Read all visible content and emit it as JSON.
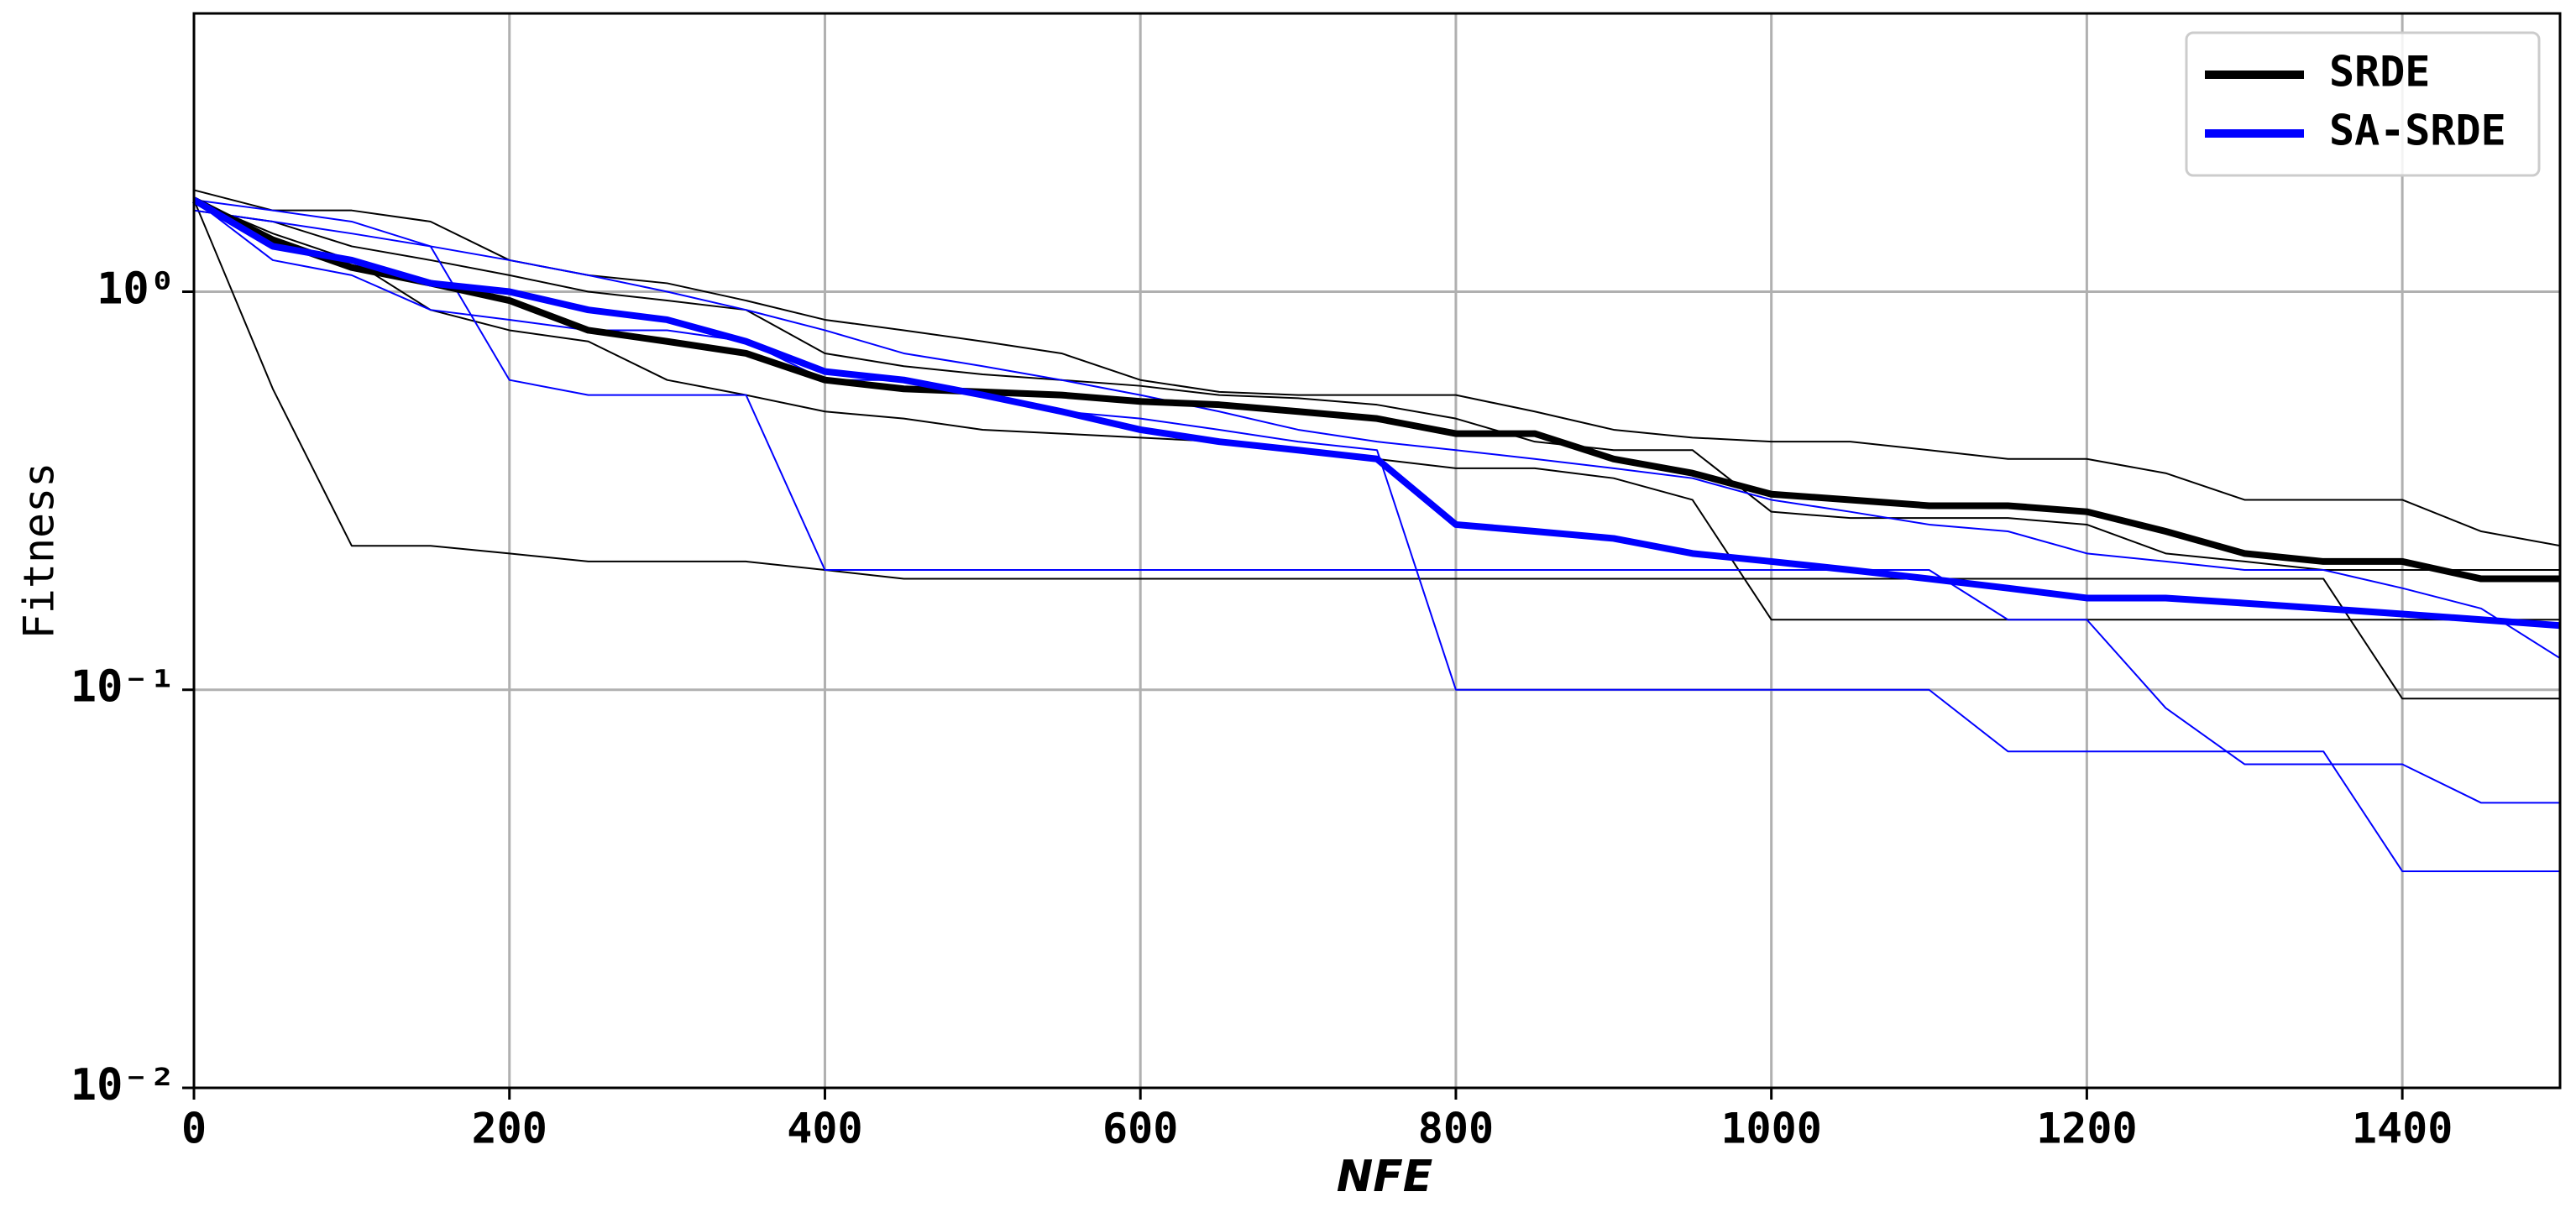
{
  "chart_data": {
    "type": "line",
    "log_y": true,
    "grid": true,
    "legend": "upper right",
    "xlabel": "NFE",
    "ylabel": "Fitness",
    "xlim": [
      0,
      1500
    ],
    "xticks": [
      0,
      200,
      400,
      600,
      800,
      1000,
      1200,
      1400
    ],
    "ylim": [
      0.01,
      5
    ],
    "yticks": [
      {
        "value": 0.01,
        "label": "10⁻²"
      },
      {
        "value": 0.1,
        "label": "10⁻¹"
      },
      {
        "value": 1,
        "label": "10⁰"
      }
    ],
    "x": [
      0,
      50,
      100,
      150,
      200,
      250,
      300,
      350,
      400,
      450,
      500,
      550,
      600,
      650,
      700,
      750,
      800,
      850,
      900,
      950,
      1000,
      1050,
      1100,
      1150,
      1200,
      1250,
      1300,
      1350,
      1400,
      1450,
      1500
    ],
    "series": [
      {
        "color": "#000000",
        "linewidth": 2,
        "values": [
          1.7,
          0.57,
          0.23,
          0.23,
          0.22,
          0.21,
          0.21,
          0.21,
          0.2,
          0.19,
          0.19,
          0.19,
          0.19,
          0.19,
          0.19,
          0.19,
          0.19,
          0.19,
          0.19,
          0.19,
          0.19,
          0.19,
          0.19,
          0.19,
          0.19,
          0.19,
          0.19,
          0.19,
          0.095,
          0.095,
          0.095
        ]
      },
      {
        "color": "#000000",
        "linewidth": 2,
        "values": [
          1.8,
          1.6,
          1.6,
          1.5,
          1.2,
          1.1,
          1.05,
          0.95,
          0.85,
          0.8,
          0.75,
          0.7,
          0.6,
          0.56,
          0.55,
          0.55,
          0.55,
          0.5,
          0.45,
          0.43,
          0.42,
          0.42,
          0.4,
          0.38,
          0.38,
          0.35,
          0.3,
          0.3,
          0.3,
          0.25,
          0.23
        ]
      },
      {
        "color": "#000000",
        "linewidth": 2,
        "values": [
          1.7,
          1.4,
          1.2,
          0.9,
          0.8,
          0.75,
          0.6,
          0.55,
          0.5,
          0.48,
          0.45,
          0.44,
          0.43,
          0.42,
          0.4,
          0.38,
          0.36,
          0.36,
          0.34,
          0.3,
          0.15,
          0.15,
          0.15,
          0.15,
          0.15,
          0.15,
          0.15,
          0.15,
          0.15,
          0.15,
          0.15
        ]
      },
      {
        "color": "#000000",
        "linewidth": 2,
        "values": [
          1.6,
          1.5,
          1.3,
          1.2,
          1.1,
          1.0,
          0.95,
          0.9,
          0.7,
          0.65,
          0.62,
          0.6,
          0.58,
          0.55,
          0.54,
          0.52,
          0.48,
          0.42,
          0.4,
          0.4,
          0.28,
          0.27,
          0.27,
          0.27,
          0.26,
          0.22,
          0.21,
          0.2,
          0.2,
          0.2,
          0.2
        ]
      },
      {
        "color": "#0000ff",
        "linewidth": 2,
        "values": [
          1.7,
          1.2,
          1.1,
          0.9,
          0.85,
          0.8,
          0.8,
          0.75,
          0.6,
          0.6,
          0.55,
          0.5,
          0.48,
          0.45,
          0.42,
          0.4,
          0.1,
          0.1,
          0.1,
          0.1,
          0.1,
          0.1,
          0.1,
          0.07,
          0.07,
          0.07,
          0.07,
          0.07,
          0.035,
          0.035,
          0.035
        ]
      },
      {
        "color": "#0000ff",
        "linewidth": 2,
        "values": [
          1.6,
          1.5,
          1.4,
          1.3,
          0.6,
          0.55,
          0.55,
          0.55,
          0.2,
          0.2,
          0.2,
          0.2,
          0.2,
          0.2,
          0.2,
          0.2,
          0.2,
          0.2,
          0.2,
          0.2,
          0.2,
          0.2,
          0.2,
          0.15,
          0.15,
          0.09,
          0.065,
          0.065,
          0.065,
          0.052,
          0.052
        ]
      },
      {
        "color": "#0000ff",
        "linewidth": 2,
        "values": [
          1.7,
          1.6,
          1.5,
          1.3,
          1.2,
          1.1,
          1.0,
          0.9,
          0.8,
          0.7,
          0.65,
          0.6,
          0.55,
          0.5,
          0.45,
          0.42,
          0.4,
          0.38,
          0.36,
          0.34,
          0.3,
          0.28,
          0.26,
          0.25,
          0.22,
          0.21,
          0.2,
          0.2,
          0.18,
          0.16,
          0.12
        ]
      },
      {
        "name": "SRDE",
        "color": "#000000",
        "linewidth": 8,
        "values": [
          1.7,
          1.35,
          1.15,
          1.05,
          0.95,
          0.8,
          0.75,
          0.7,
          0.6,
          0.57,
          0.56,
          0.55,
          0.53,
          0.52,
          0.5,
          0.48,
          0.44,
          0.44,
          0.38,
          0.35,
          0.31,
          0.3,
          0.29,
          0.29,
          0.28,
          0.25,
          0.22,
          0.21,
          0.21,
          0.19,
          0.19
        ]
      },
      {
        "name": "SA-SRDE",
        "color": "#0000ff",
        "linewidth": 8,
        "values": [
          1.7,
          1.3,
          1.2,
          1.05,
          1.0,
          0.9,
          0.85,
          0.75,
          0.63,
          0.6,
          0.55,
          0.5,
          0.45,
          0.42,
          0.4,
          0.38,
          0.26,
          0.25,
          0.24,
          0.22,
          0.21,
          0.2,
          0.19,
          0.18,
          0.17,
          0.17,
          0.165,
          0.16,
          0.155,
          0.15,
          0.145
        ]
      }
    ]
  }
}
